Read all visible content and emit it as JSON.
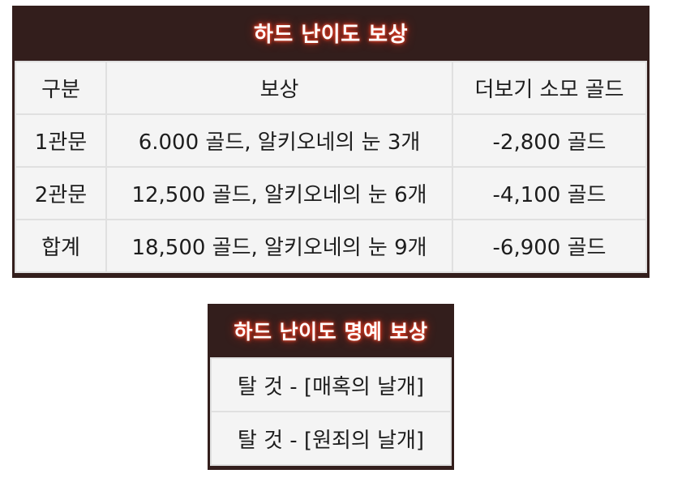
{
  "hard_reward": {
    "title": "하드 난이도 보상",
    "headers": [
      "구분",
      "보상",
      "더보기 소모 골드"
    ],
    "rows": [
      [
        "1관문",
        "6.000 골드, 알키오네의 눈 3개",
        "-2,800 골드"
      ],
      [
        "2관문",
        "12,500 골드, 알키오네의 눈 6개",
        "-4,100 골드"
      ],
      [
        "합계",
        "18,500 골드, 알키오네의 눈 9개",
        "-6,900 골드"
      ]
    ]
  },
  "honor_reward": {
    "title": "하드 난이도 명예 보상",
    "items": [
      "탈 것 - [매혹의 날개]",
      "탈 것 - [원죄의 날개]"
    ]
  }
}
